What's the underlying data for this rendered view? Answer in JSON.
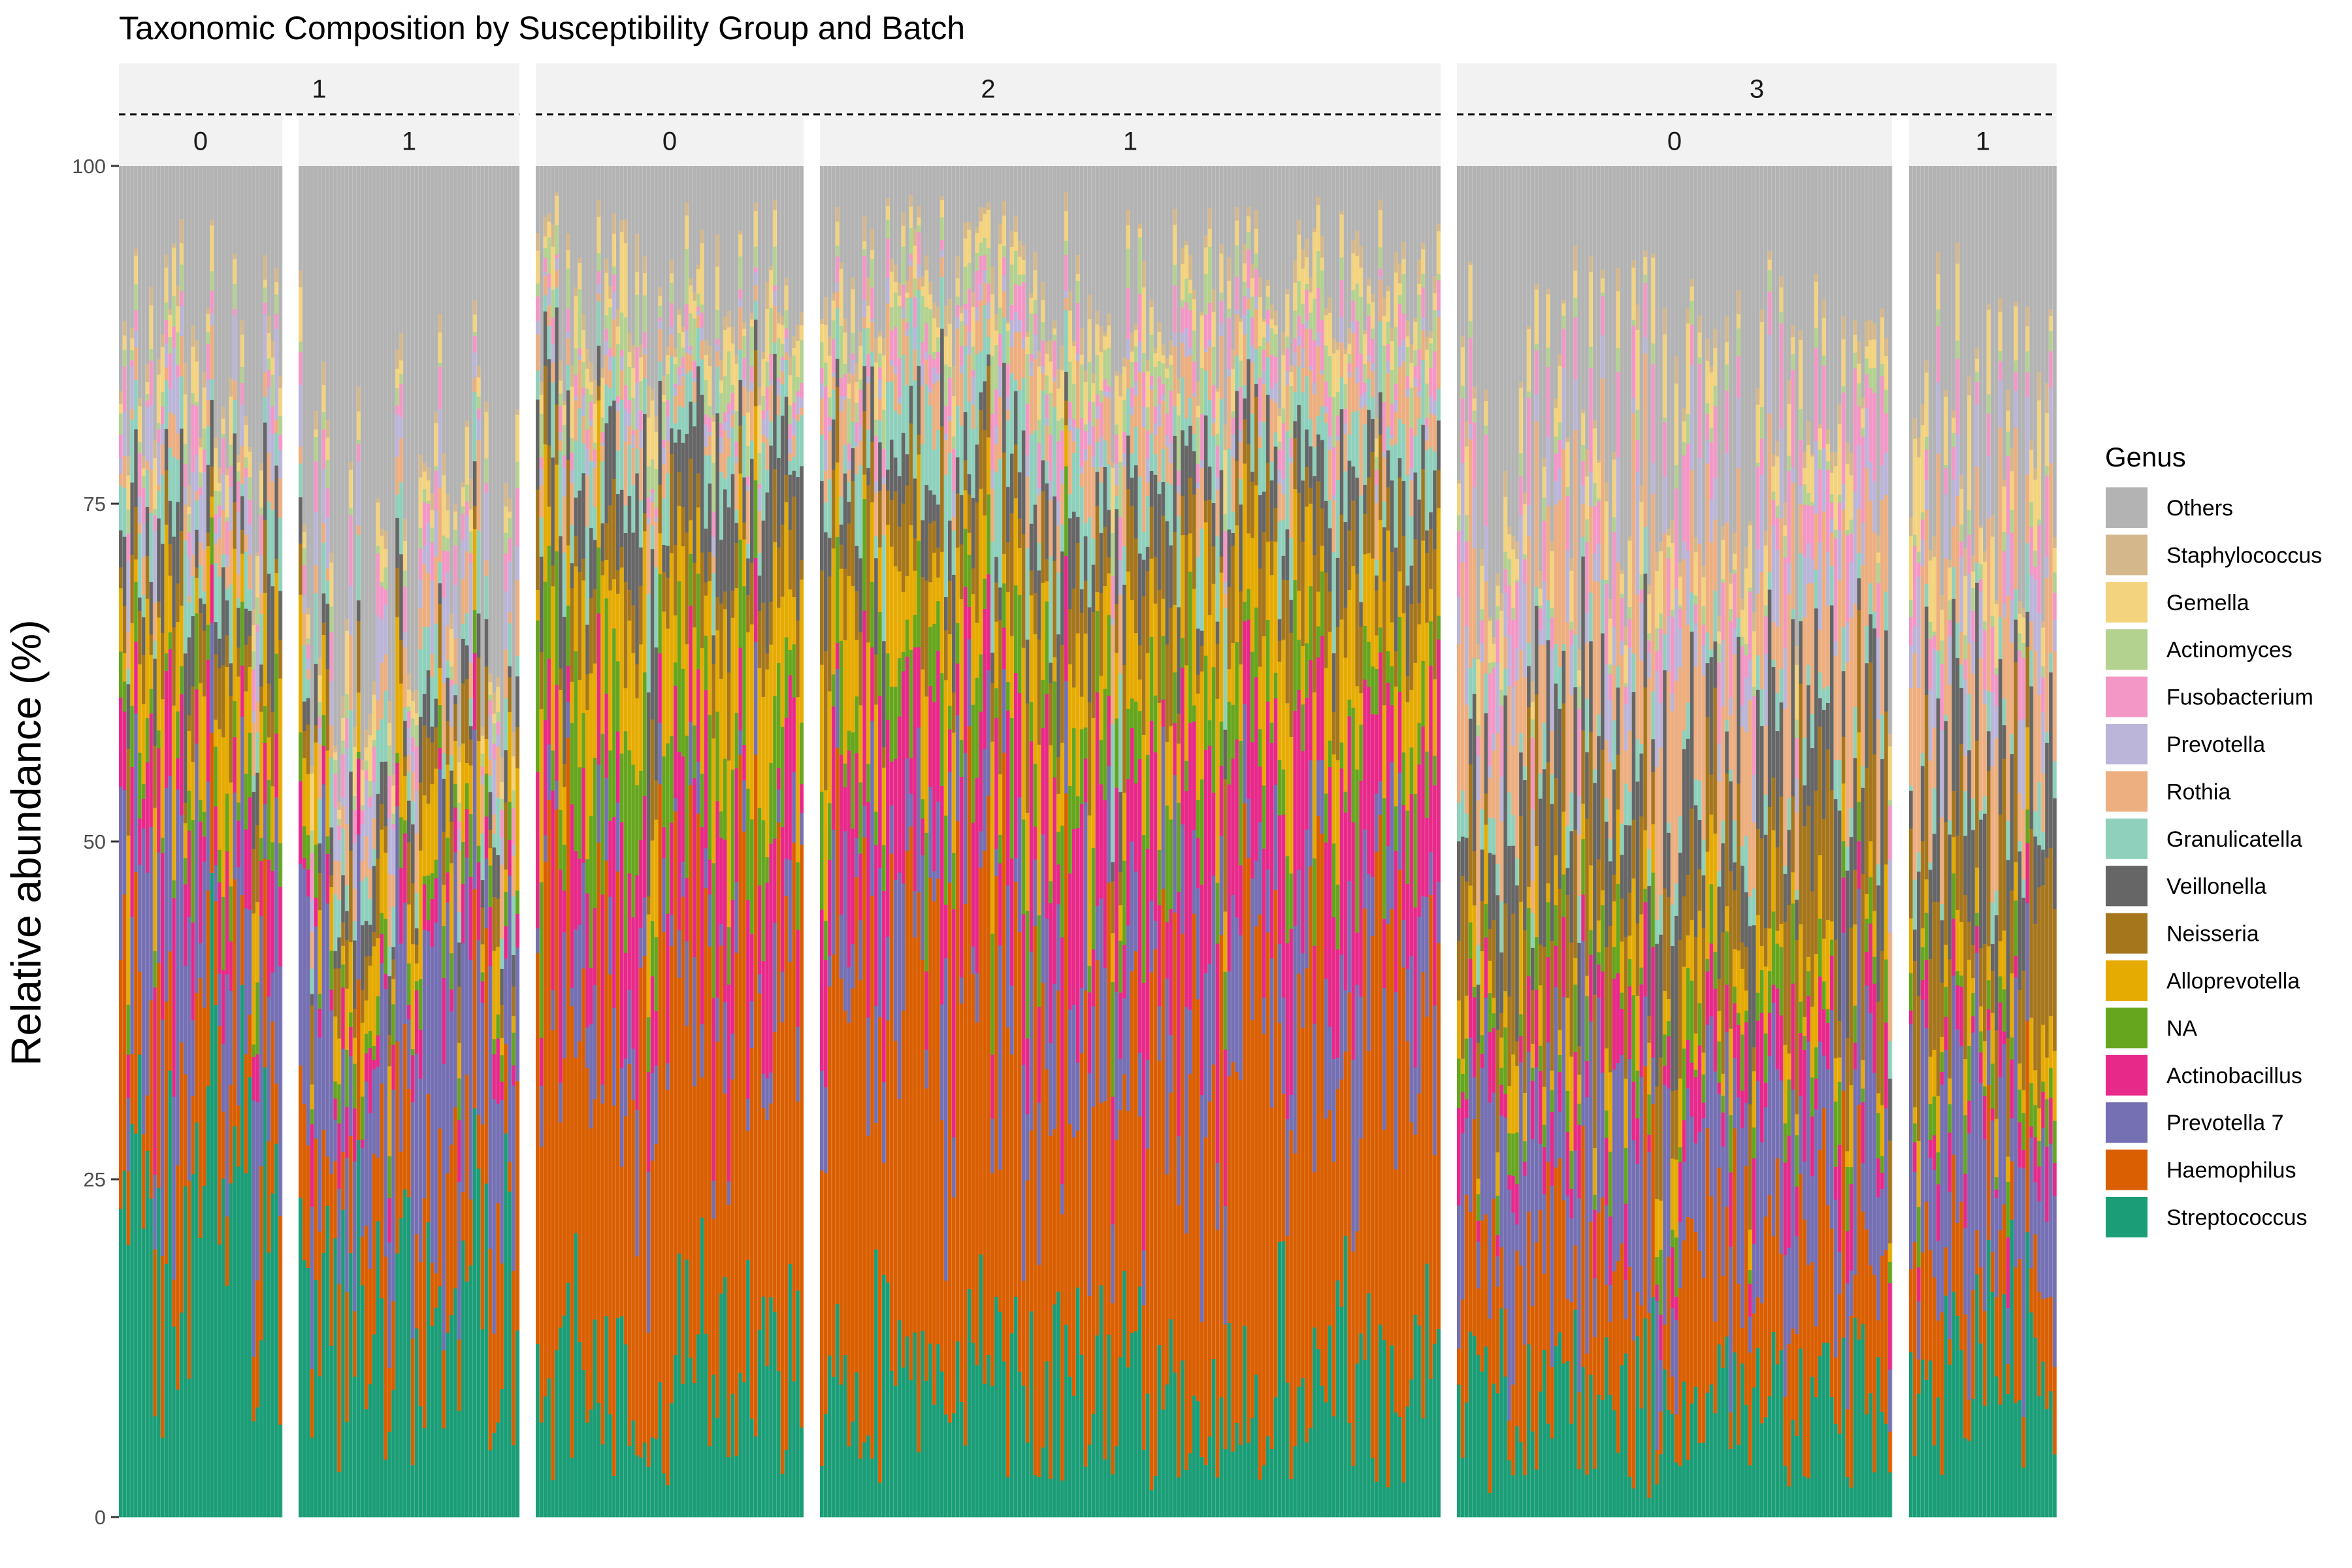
{
  "chart_data": {
    "type": "bar",
    "stacked": true,
    "title": "Taxonomic Composition by Susceptibility Group and Batch",
    "xlabel": "",
    "ylabel": "Relative abundance (%)",
    "ylim": [
      0,
      100
    ],
    "y_ticks": [
      0,
      25,
      50,
      75,
      100
    ],
    "legend": {
      "title": "Genus",
      "placement": "right",
      "items": [
        {
          "name": "Others",
          "color": "#B3B3B3"
        },
        {
          "name": "Staphylococcus",
          "color": "#D4B88C"
        },
        {
          "name": "Gemella",
          "color": "#F3D37E"
        },
        {
          "name": "Actinomyces",
          "color": "#B3D18F"
        },
        {
          "name": "Fusobacterium",
          "color": "#F397C6"
        },
        {
          "name": "Prevotella",
          "color": "#BBB5D9"
        },
        {
          "name": "Rothia",
          "color": "#EDAE80"
        },
        {
          "name": "Granulicatella",
          "color": "#8ED0BC"
        },
        {
          "name": "Veillonella",
          "color": "#666666"
        },
        {
          "name": "Neisseria",
          "color": "#A6761D"
        },
        {
          "name": "Alloprevotella",
          "color": "#E6AB02"
        },
        {
          "name": "NA",
          "color": "#66A61E"
        },
        {
          "name": "Actinobacillus",
          "color": "#E7298A"
        },
        {
          "name": "Prevotella 7",
          "color": "#7570B3"
        },
        {
          "name": "Haemophilus",
          "color": "#D95F02"
        },
        {
          "name": "Streptococcus",
          "color": "#1B9E77"
        }
      ]
    },
    "facets": [
      {
        "group": "1",
        "batches": [
          {
            "batch": "0",
            "n_samples": 43,
            "mean_composition": {
              "Streptococcus": 24,
              "Haemophilus": 12,
              "Prevotella 7": 12,
              "Actinobacillus": 7,
              "NA": 3,
              "Alloprevotella": 6,
              "Neisseria": 3,
              "Veillonella": 4,
              "Granulicatella": 3,
              "Rothia": 2,
              "Prevotella": 3,
              "Fusobacterium": 2,
              "Actinomyces": 1,
              "Gemella": 2,
              "Staphylococcus": 1,
              "Others": 15
            }
          },
          {
            "batch": "1",
            "n_samples": 57,
            "mean_composition": {
              "Streptococcus": 15,
              "Haemophilus": 10,
              "Prevotella 7": 14,
              "Actinobacillus": 3,
              "NA": 2,
              "Alloprevotella": 5,
              "Neisseria": 3,
              "Veillonella": 3,
              "Granulicatella": 3,
              "Rothia": 3,
              "Prevotella": 3,
              "Fusobacterium": 2,
              "Actinomyces": 1,
              "Gemella": 2,
              "Staphylococcus": 1,
              "Others": 30
            }
          }
        ]
      },
      {
        "group": "2",
        "batches": [
          {
            "batch": "0",
            "n_samples": 70,
            "mean_composition": {
              "Streptococcus": 10,
              "Haemophilus": 30,
              "Prevotella 7": 5,
              "Actinobacillus": 8,
              "NA": 7,
              "Alloprevotella": 8,
              "Neisseria": 4,
              "Veillonella": 6,
              "Granulicatella": 3,
              "Rothia": 2,
              "Prevotella": 1,
              "Fusobacterium": 1,
              "Actinomyces": 2,
              "Gemella": 2,
              "Staphylococcus": 1,
              "Others": 10
            }
          },
          {
            "batch": "1",
            "n_samples": 160,
            "mean_composition": {
              "Streptococcus": 10,
              "Haemophilus": 27,
              "Prevotella 7": 8,
              "Actinobacillus": 10,
              "NA": 5,
              "Alloprevotella": 7,
              "Neisseria": 5,
              "Veillonella": 4,
              "Granulicatella": 4,
              "Rothia": 3,
              "Prevotella": 1,
              "Fusobacterium": 2,
              "Actinomyces": 2,
              "Gemella": 2,
              "Staphylococcus": 1,
              "Others": 9
            }
          }
        ]
      },
      {
        "group": "3",
        "batches": [
          {
            "batch": "0",
            "n_samples": 112,
            "mean_composition": {
              "Streptococcus": 8,
              "Haemophilus": 10,
              "Prevotella 7": 10,
              "Actinobacillus": 4,
              "NA": 3,
              "Alloprevotella": 4,
              "Neisseria": 7,
              "Veillonella": 8,
              "Granulicatella": 2,
              "Rothia": 9,
              "Prevotella": 4,
              "Fusobacterium": 4,
              "Actinomyces": 1,
              "Gemella": 3,
              "Staphylococcus": 1,
              "Others": 22
            }
          },
          {
            "batch": "1",
            "n_samples": 38,
            "mean_composition": {
              "Streptococcus": 12,
              "Haemophilus": 8,
              "Prevotella 7": 12,
              "Actinobacillus": 3,
              "NA": 2,
              "Alloprevotella": 3,
              "Neisseria": 8,
              "Veillonella": 7,
              "Granulicatella": 2,
              "Rothia": 8,
              "Prevotella": 4,
              "Fusobacterium": 3,
              "Actinomyces": 1,
              "Gemella": 4,
              "Staphylococcus": 1,
              "Others": 22
            }
          }
        ]
      }
    ]
  }
}
